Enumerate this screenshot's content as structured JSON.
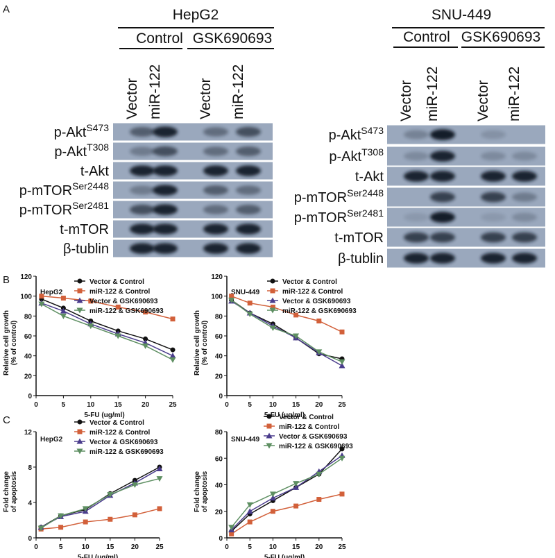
{
  "panels": [
    "A",
    "B",
    "C"
  ],
  "blots": [
    {
      "cell_line": "HepG2",
      "groups": [
        "Control",
        "GSK690693"
      ],
      "lanes": [
        "Vector",
        "miR-122",
        "Vector",
        "miR-122"
      ],
      "rows": [
        {
          "name": "p-Akt",
          "sup": "S473"
        },
        {
          "name": "p-Akt",
          "sup": "T308"
        },
        {
          "name": "t-Akt"
        },
        {
          "name": "p-mTOR",
          "sup": "Ser2448"
        },
        {
          "name": "p-mTOR",
          "sup": "Ser2481"
        },
        {
          "name": "t-mTOR"
        },
        {
          "name": "β-tublin"
        }
      ]
    },
    {
      "cell_line": "SNU-449",
      "groups": [
        "Control",
        "GSK690693"
      ],
      "lanes": [
        "Vector",
        "miR-122",
        "Vector",
        "miR-122"
      ],
      "rows": [
        {
          "name": "p-Akt",
          "sup": "S473"
        },
        {
          "name": "p-Akt",
          "sup": "T308"
        },
        {
          "name": "t-Akt"
        },
        {
          "name": "p-mTOR",
          "sup": "Ser2448"
        },
        {
          "name": "p-mTOR",
          "sup": "Ser2481"
        },
        {
          "name": "t-mTOR"
        },
        {
          "name": "β-tublin"
        }
      ]
    }
  ],
  "chart_data": [
    {
      "type": "line",
      "title": "HepG2",
      "xlabel": "5-FU (ug/ml)",
      "ylabel": [
        "Relative cell growth",
        "(% of control)"
      ],
      "x": [
        1,
        5,
        10,
        15,
        20,
        25
      ],
      "xlim": [
        0,
        25
      ],
      "xticks": [
        0,
        5,
        10,
        15,
        20,
        25
      ],
      "ylim": [
        0,
        120
      ],
      "yticks": [
        0,
        20,
        40,
        60,
        80,
        100,
        120
      ],
      "series": [
        {
          "name": "Vector & Control",
          "color": "#111111",
          "values": [
            97,
            88,
            75,
            65,
            57,
            46
          ]
        },
        {
          "name": "miR-122 & Control",
          "color": "#d2603a",
          "values": [
            100,
            98,
            95,
            89,
            84,
            77
          ]
        },
        {
          "name": "Vector & GSK690693",
          "color": "#4a3c8c",
          "values": [
            93,
            85,
            72,
            62,
            53,
            40
          ]
        },
        {
          "name": "miR-122 & GSK690693",
          "color": "#5e8f62",
          "values": [
            92,
            80,
            70,
            60,
            50,
            36
          ]
        }
      ]
    },
    {
      "type": "line",
      "title": "SNU-449",
      "xlabel": "5-FU (ug/ml)",
      "ylabel": [
        "Relative cell growth",
        "(% of control)"
      ],
      "x": [
        1,
        5,
        10,
        15,
        20,
        25
      ],
      "xlim": [
        0,
        25
      ],
      "xticks": [
        0,
        5,
        10,
        15,
        20,
        25
      ],
      "ylim": [
        0,
        120
      ],
      "yticks": [
        0,
        20,
        40,
        60,
        80,
        100,
        120
      ],
      "series": [
        {
          "name": "Vector & Control",
          "color": "#111111",
          "values": [
            96,
            83,
            72,
            58,
            42,
            37
          ]
        },
        {
          "name": "miR-122 & Control",
          "color": "#d2603a",
          "values": [
            100,
            93,
            89,
            81,
            75,
            64
          ]
        },
        {
          "name": "Vector & GSK690693",
          "color": "#4a3c8c",
          "values": [
            95,
            83,
            70,
            58,
            43,
            30
          ]
        },
        {
          "name": "miR-122 & GSK690693",
          "color": "#5e8f62",
          "values": [
            96,
            82,
            68,
            60,
            44,
            34
          ]
        }
      ]
    },
    {
      "type": "line",
      "title": "HepG2",
      "xlabel": "5-FU (ug/ml)",
      "ylabel": [
        "Fold change",
        "of apoptosis"
      ],
      "x": [
        1,
        5,
        10,
        15,
        20,
        25
      ],
      "xlim": [
        0,
        25
      ],
      "xticks": [
        0,
        5,
        10,
        15,
        20,
        25
      ],
      "ylim": [
        0,
        12
      ],
      "yticks": [
        0,
        4,
        8,
        12
      ],
      "series": [
        {
          "name": "Vector & Control",
          "color": "#111111",
          "values": [
            1.2,
            2.5,
            3.2,
            5,
            6.5,
            8
          ]
        },
        {
          "name": "miR-122 & Control",
          "color": "#d2603a",
          "values": [
            1.0,
            1.2,
            1.8,
            2.1,
            2.6,
            3.3
          ]
        },
        {
          "name": "Vector & GSK690693",
          "color": "#4a3c8c",
          "values": [
            1.2,
            2.4,
            3.0,
            4.8,
            6.2,
            7.8
          ]
        },
        {
          "name": "miR-122 & GSK690693",
          "color": "#5e8f62",
          "values": [
            1.1,
            2.5,
            3.3,
            4.9,
            6.0,
            6.7
          ]
        }
      ]
    },
    {
      "type": "line",
      "title": "SNU-449",
      "xlabel": "5-FU (ug/ml)",
      "ylabel": [
        "Fold change",
        "of apoptosis"
      ],
      "x": [
        1,
        5,
        10,
        15,
        20,
        25
      ],
      "xlim": [
        0,
        25
      ],
      "xticks": [
        0,
        5,
        10,
        15,
        20,
        25
      ],
      "ylim": [
        0,
        80
      ],
      "yticks": [
        0,
        20,
        40,
        60,
        80
      ],
      "series": [
        {
          "name": "Vector & Control",
          "color": "#111111",
          "values": [
            5,
            18,
            28,
            38,
            48,
            67
          ]
        },
        {
          "name": "miR-122 & Control",
          "color": "#d2603a",
          "values": [
            3,
            12,
            20,
            24,
            29,
            33
          ]
        },
        {
          "name": "Vector & GSK690693",
          "color": "#4a3c8c",
          "values": [
            6,
            20,
            30,
            38,
            50,
            62
          ]
        },
        {
          "name": "miR-122 & GSK690693",
          "color": "#5e8f62",
          "values": [
            8,
            25,
            33,
            41,
            48,
            60
          ]
        }
      ]
    }
  ]
}
